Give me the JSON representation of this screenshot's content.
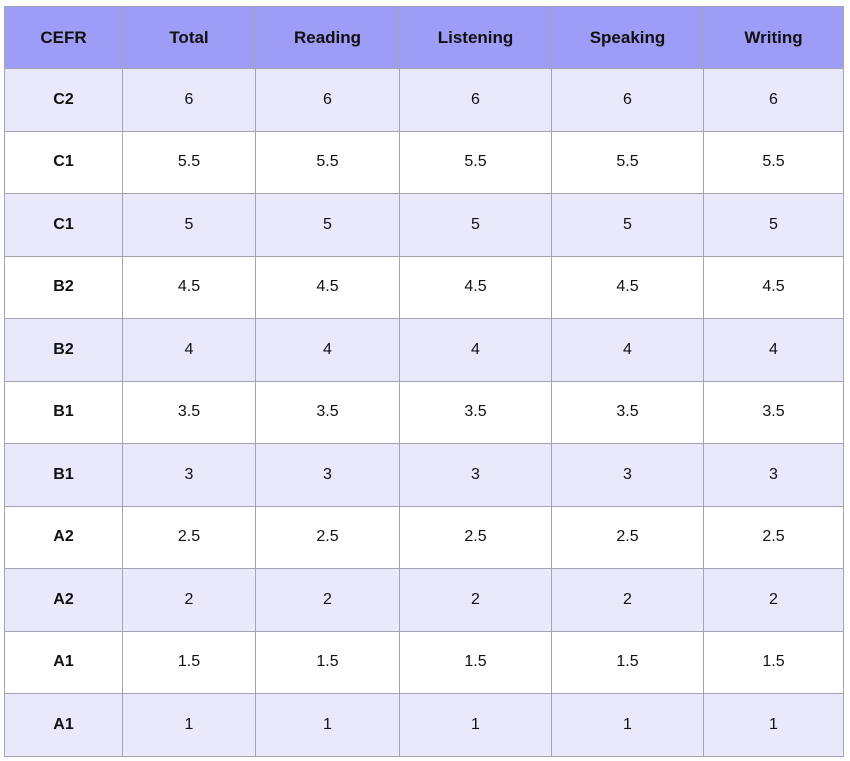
{
  "table": {
    "header": [
      "CEFR",
      "Total",
      "Reading",
      "Listening",
      "Speaking",
      "Writing"
    ],
    "rows": [
      [
        "C2",
        6,
        6,
        6,
        6,
        6
      ],
      [
        "C1",
        5.5,
        5.5,
        5.5,
        5.5,
        5.5
      ],
      [
        "C1",
        5,
        5,
        5,
        5,
        5
      ],
      [
        "B2",
        4.5,
        4.5,
        4.5,
        4.5,
        4.5
      ],
      [
        "B2",
        4,
        4,
        4,
        4,
        4
      ],
      [
        "B1",
        3.5,
        3.5,
        3.5,
        3.5,
        3.5
      ],
      [
        "B1",
        3,
        3,
        3,
        3,
        3
      ],
      [
        "A2",
        2.5,
        2.5,
        2.5,
        2.5,
        2.5
      ],
      [
        "A2",
        2,
        2,
        2,
        2,
        2
      ],
      [
        "A1",
        1.5,
        1.5,
        1.5,
        1.5,
        1.5
      ],
      [
        "A1",
        1,
        1,
        1,
        1,
        1
      ]
    ]
  }
}
